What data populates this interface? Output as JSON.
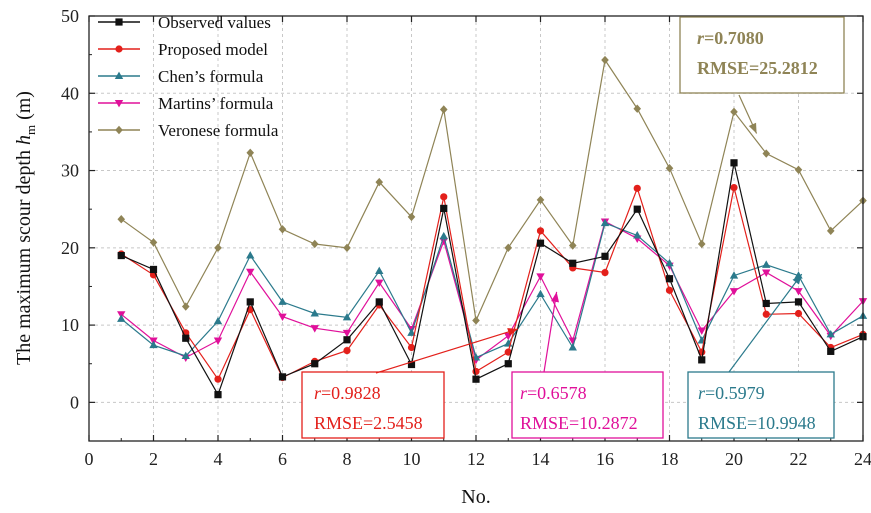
{
  "chart_data": {
    "type": "line",
    "xlabel": "No.",
    "ylabel_main": "The maximum scour depth ",
    "ylabel_var": "h",
    "ylabel_sub": "m",
    "ylabel_unit": " (m)",
    "xlim": [
      0,
      24
    ],
    "ylim": [
      -5,
      50
    ],
    "xticks": [
      0,
      2,
      4,
      6,
      8,
      10,
      12,
      14,
      16,
      18,
      20,
      22,
      24
    ],
    "yticks": [
      0,
      10,
      20,
      30,
      40,
      50
    ],
    "x": [
      1,
      2,
      3,
      4,
      5,
      6,
      7,
      8,
      9,
      10,
      11,
      12,
      13,
      14,
      15,
      16,
      17,
      18,
      19,
      20,
      21,
      22,
      23,
      24
    ],
    "series": [
      {
        "name": "Observed values",
        "color": "#111111",
        "marker": "square",
        "values": [
          19.0,
          17.2,
          8.3,
          1.0,
          13.0,
          3.3,
          5.0,
          8.1,
          13.0,
          4.9,
          25.1,
          3.0,
          5.0,
          20.6,
          18.0,
          18.9,
          25.0,
          16.0,
          5.5,
          31.0,
          12.8,
          13.0,
          6.6,
          8.5
        ]
      },
      {
        "name": "Proposed model",
        "color": "#e3201b",
        "marker": "circle",
        "values": [
          19.2,
          16.5,
          9.0,
          3.0,
          12.0,
          3.2,
          5.3,
          6.7,
          12.6,
          7.1,
          26.6,
          4.0,
          6.5,
          22.2,
          17.4,
          16.8,
          27.7,
          14.5,
          6.5,
          27.8,
          11.4,
          11.5,
          7.1,
          8.8
        ]
      },
      {
        "name": "Chen’s formula",
        "color": "#2b7a8c",
        "marker": "triangle-up",
        "values": [
          10.8,
          7.4,
          6.0,
          10.5,
          19.0,
          13.0,
          11.5,
          11.0,
          17.0,
          9.0,
          21.5,
          5.8,
          7.6,
          14.0,
          7.1,
          23.2,
          21.6,
          18.0,
          8.0,
          16.4,
          17.8,
          16.4,
          8.8,
          11.2
        ]
      },
      {
        "name": "Martins’ formula",
        "color": "#e0109a",
        "marker": "triangle-down",
        "values": [
          11.4,
          8.0,
          5.8,
          8.0,
          16.9,
          11.1,
          9.6,
          9.0,
          15.5,
          9.5,
          20.9,
          5.5,
          8.6,
          16.3,
          8.0,
          23.4,
          21.2,
          17.7,
          9.3,
          14.4,
          16.8,
          14.4,
          8.6,
          13.1
        ]
      },
      {
        "name": "Veronese formula",
        "color": "#8f8456",
        "marker": "diamond",
        "values": [
          23.7,
          20.7,
          12.4,
          20.0,
          32.3,
          22.4,
          20.5,
          20.0,
          28.5,
          24.0,
          37.9,
          10.6,
          20.0,
          26.2,
          20.3,
          44.3,
          38.0,
          30.3,
          20.5,
          37.6,
          32.2,
          30.1,
          22.2,
          26.1
        ]
      }
    ],
    "legend_position": "top-left",
    "grid": true,
    "annotations": [
      {
        "r_label": "r",
        "r_value": "=0.7080",
        "rmse": "RMSE=25.2812",
        "color": "#8f8456",
        "series": "Veronese formula",
        "bold": true
      },
      {
        "r_label": "r",
        "r_value": "=0.9828",
        "rmse": "RMSE=2.5458",
        "color": "#e3201b",
        "series": "Proposed model",
        "bold": false
      },
      {
        "r_label": "r",
        "r_value": "=0.6578",
        "rmse": "RMSE=10.2872",
        "color": "#e0109a",
        "series": "Martins’ formula",
        "bold": false
      },
      {
        "r_label": "r",
        "r_value": "=0.5979",
        "rmse": "RMSE=10.9948",
        "color": "#2b7a8c",
        "series": "Chen’s formula",
        "bold": false
      }
    ]
  }
}
